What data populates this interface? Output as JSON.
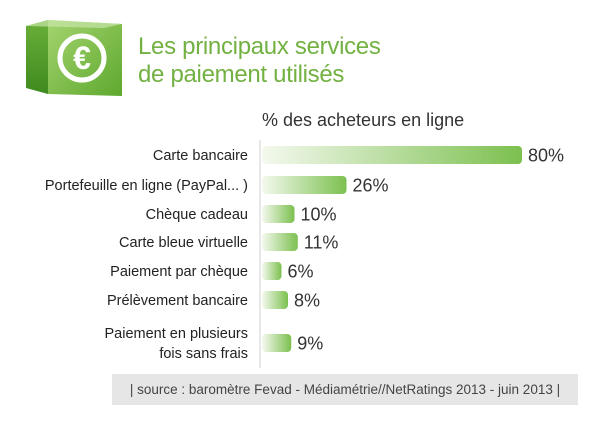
{
  "header": {
    "icon": "euro-icon",
    "title_line1": "Les principaux services",
    "title_line2": "de paiement utilisés",
    "title_color": "#72b142"
  },
  "chart_data": {
    "type": "bar",
    "orientation": "horizontal",
    "subtitle": "% des acheteurs en ligne",
    "categories": [
      [
        "Carte bancaire"
      ],
      [
        "Portefeuille en ligne (PayPal... )"
      ],
      [
        "Chèque cadeau"
      ],
      [
        "Carte bleue virtuelle"
      ],
      [
        "Paiement par chèque"
      ],
      [
        "Prélèvement bancaire"
      ],
      [
        "Paiement en plusieurs",
        "fois sans frais"
      ]
    ],
    "values": [
      80,
      26,
      10,
      11,
      6,
      8,
      9
    ],
    "value_labels": [
      "80%",
      "26%",
      "10%",
      "11%",
      "6%",
      "8%",
      "9%"
    ],
    "xlim": [
      0,
      80
    ],
    "grid": false,
    "bar_color_start": "#f4f9ee",
    "bar_color_end": "#7cc04f"
  },
  "footer": {
    "source": "| source : baromètre Fevad - Médiamétrie//NetRatings 2013 - juin 2013 |"
  }
}
